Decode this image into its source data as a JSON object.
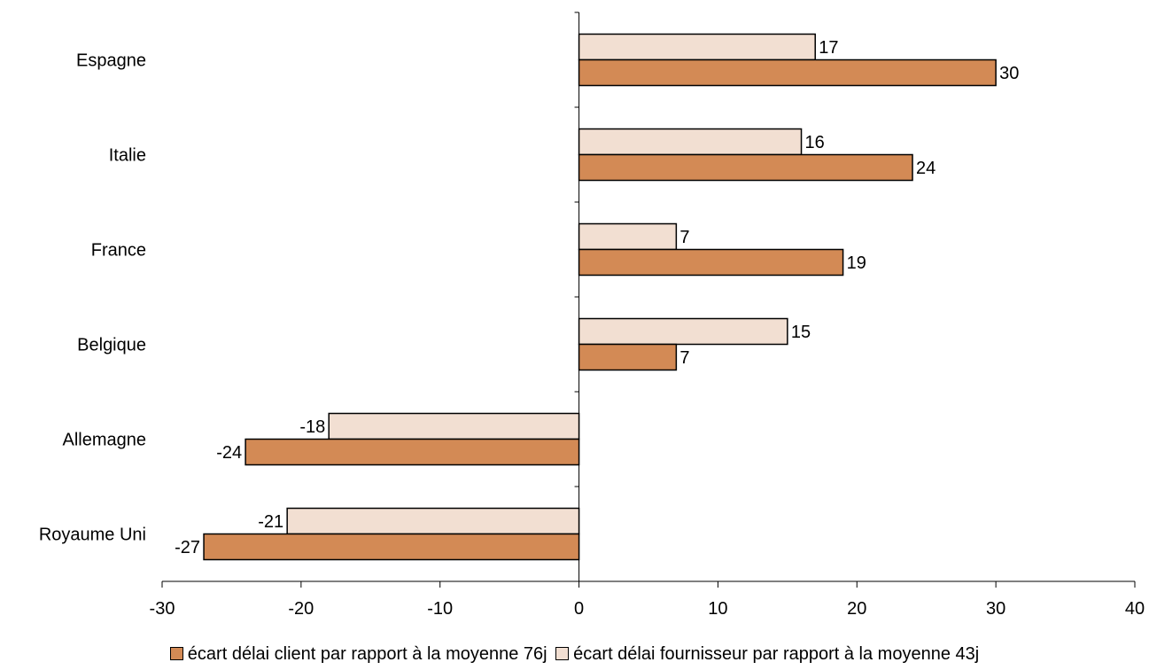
{
  "chart_data": {
    "type": "bar",
    "orientation": "horizontal",
    "categories": [
      "Espagne",
      "Italie",
      "France",
      "Belgique",
      "Allemagne",
      "Royaume Uni"
    ],
    "series": [
      {
        "name": "écart délai client par rapport à la moyenne 76j",
        "color": "#d38a55",
        "values": [
          30,
          24,
          19,
          7,
          -24,
          -27
        ],
        "labels": [
          "30",
          "24",
          "19",
          "7",
          "-24",
          "-27"
        ]
      },
      {
        "name": "écart délai fournisseur par rapport à la moyenne 43j",
        "color": "#f2dfd2",
        "values": [
          17,
          16,
          7,
          15,
          -18,
          -21
        ],
        "labels": [
          "17",
          "16",
          "7",
          "15",
          "-18",
          "-21"
        ]
      }
    ],
    "xlim": [
      -30,
      40
    ],
    "xticks": [
      -30,
      -20,
      -10,
      0,
      10,
      20,
      30,
      40
    ],
    "xtick_labels": [
      "-30",
      "-20",
      "-10",
      "0",
      "10",
      "20",
      "30",
      "40"
    ],
    "grid": false,
    "legend_position": "bottom"
  }
}
